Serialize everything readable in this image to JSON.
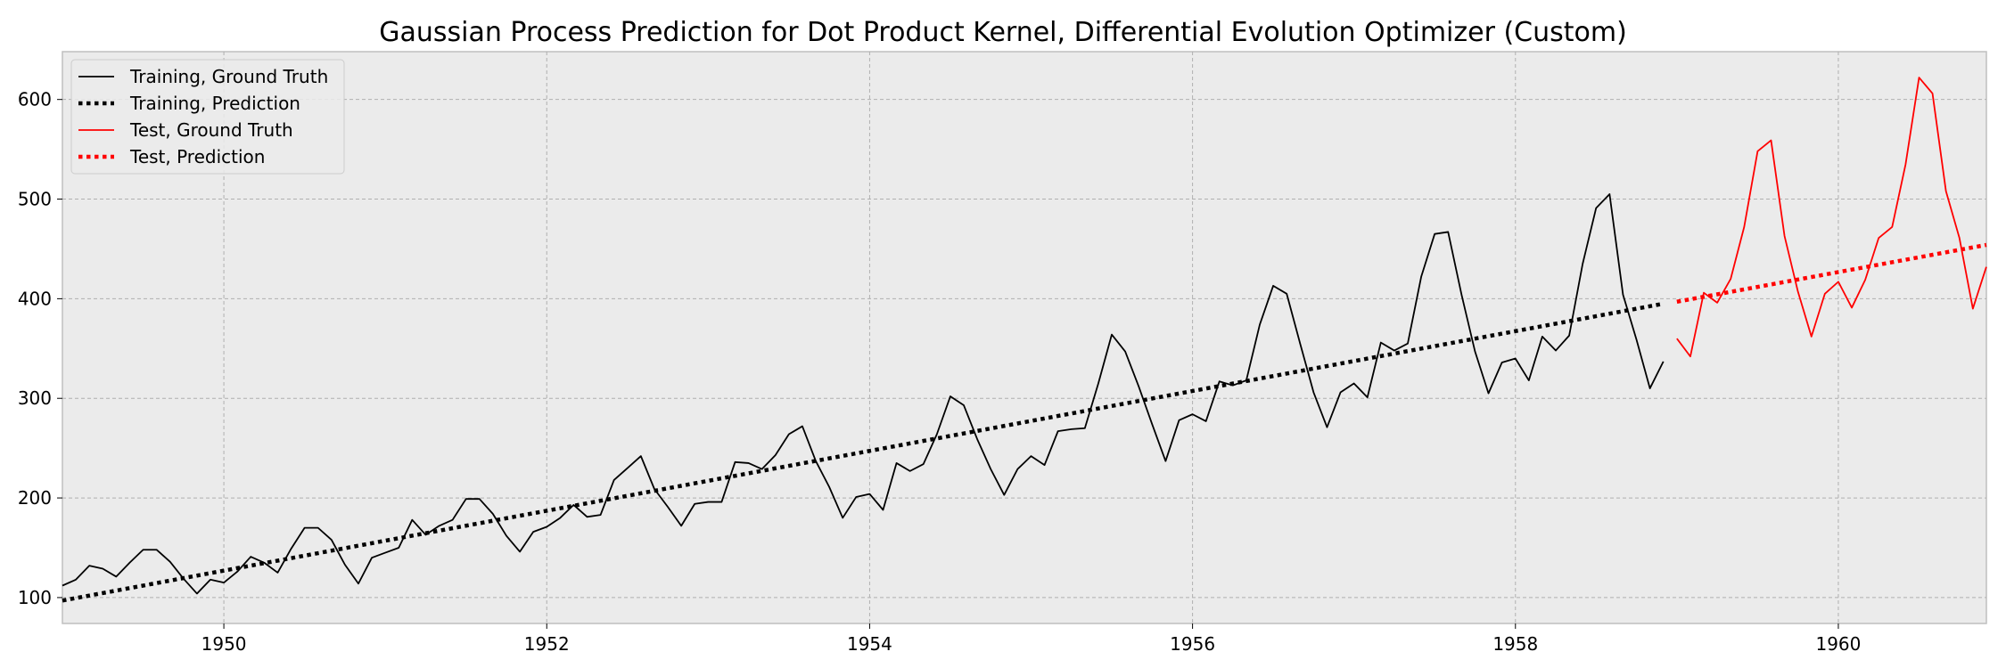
{
  "chart_data": {
    "type": "line",
    "title": "Gaussian Process Prediction for Dot Product Kernel, Differential Evolution Optimizer (Custom)",
    "xlabel": "",
    "ylabel": "",
    "xlim": [
      1949.0,
      1960.917
    ],
    "ylim": [
      74,
      648
    ],
    "xticks": [
      1950,
      1952,
      1954,
      1956,
      1958,
      1960
    ],
    "yticks": [
      100,
      200,
      300,
      400,
      500,
      600
    ],
    "grid": true,
    "legend_position": "top-left",
    "series": [
      {
        "name": "Training, Ground Truth",
        "color": "#000000",
        "style": "solid",
        "x_start": 1949.0,
        "x_step": 0.08333,
        "values": [
          112,
          118,
          132,
          129,
          121,
          135,
          148,
          148,
          136,
          119,
          104,
          118,
          115,
          126,
          141,
          135,
          125,
          149,
          170,
          170,
          158,
          133,
          114,
          140,
          145,
          150,
          178,
          163,
          172,
          178,
          199,
          199,
          184,
          162,
          146,
          166,
          171,
          180,
          193,
          181,
          183,
          218,
          230,
          242,
          209,
          191,
          172,
          194,
          196,
          196,
          236,
          235,
          229,
          243,
          264,
          272,
          237,
          211,
          180,
          201,
          204,
          188,
          235,
          227,
          234,
          264,
          302,
          293,
          259,
          229,
          203,
          229,
          242,
          233,
          267,
          269,
          270,
          315,
          364,
          347,
          312,
          274,
          237,
          278,
          284,
          277,
          317,
          313,
          318,
          374,
          413,
          405,
          355,
          306,
          271,
          306,
          315,
          301,
          356,
          348,
          355,
          422,
          465,
          467,
          404,
          347,
          305,
          336,
          340,
          318,
          362,
          348,
          363,
          435,
          491,
          505,
          404,
          359,
          310,
          337
        ]
      },
      {
        "name": "Training, Prediction",
        "color": "#000000",
        "style": "dotted",
        "x": [
          1949.0,
          1958.917
        ],
        "values": [
          97,
          395
        ]
      },
      {
        "name": "Test, Ground Truth",
        "color": "#ff0000",
        "style": "solid",
        "x_start": 1959.0,
        "x_step": 0.08333,
        "values": [
          360,
          342,
          406,
          396,
          420,
          472,
          548,
          559,
          463,
          407,
          362,
          405,
          417,
          391,
          419,
          461,
          472,
          535,
          622,
          606,
          508,
          461,
          390,
          432
        ]
      },
      {
        "name": "Test, Prediction",
        "color": "#ff0000",
        "style": "dotted",
        "x": [
          1959.0,
          1960.917
        ],
        "values": [
          397,
          454
        ]
      }
    ]
  }
}
